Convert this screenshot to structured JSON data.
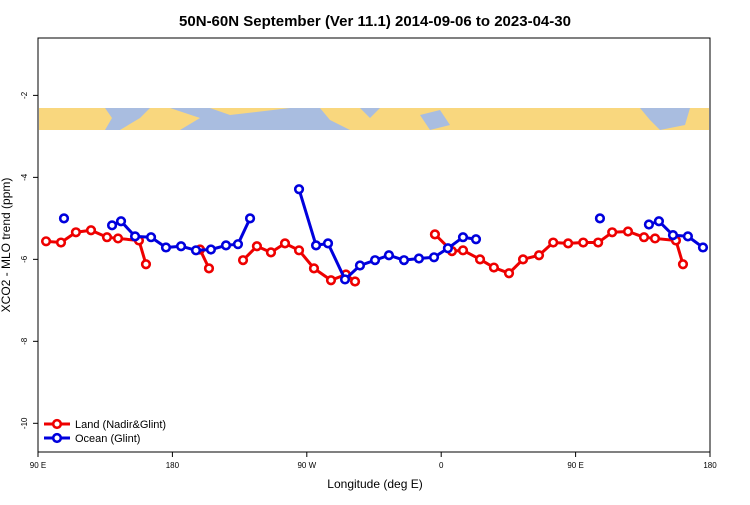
{
  "chart_data": {
    "type": "line",
    "title": "50N-60N September (Ver 11.1)   2014-09-06 to 2023-04-30",
    "x_label": "Longitude (deg E)",
    "y_label": "XCO2 - MLO trend (ppm)",
    "xlim": [
      90,
      540
    ],
    "xticks": [
      {
        "value": 90,
        "label": "90 E"
      },
      180,
      {
        "value": 270,
        "label": "90 W"
      },
      {
        "value": 360,
        "label": "0"
      },
      {
        "value": 450,
        "label": "90 E"
      },
      {
        "value": 540,
        "label": "180"
      }
    ],
    "ylim": [
      -10.7,
      -0.6
    ],
    "yticks": [
      -2,
      -4,
      -6,
      -8,
      -10
    ],
    "legend": "bottom-left",
    "series": [
      {
        "name": "Land (Nadir&Glint)",
        "color": "#ee0000",
        "x": [
          95.4,
          105.4,
          115.4,
          125.5,
          136.2,
          143.6,
          157.6,
          162.3,
          null,
          198.5,
          204.5,
          null,
          227.3,
          236.6,
          246.0,
          255.4,
          264.8,
          274.8,
          286.2,
          296.2,
          302.3,
          null,
          355.8,
          367.2,
          374.6,
          386.0,
          395.3,
          405.4,
          414.8,
          425.5,
          435.0,
          445.0,
          455.1,
          465.1,
          474.5,
          485.1,
          495.8,
          503.2,
          517.2,
          521.9
        ],
        "values": [
          -5.56,
          -5.59,
          -5.34,
          -5.29,
          -5.46,
          -5.49,
          -5.54,
          -6.12,
          null,
          -5.76,
          -6.22,
          null,
          -6.02,
          -5.68,
          -5.83,
          -5.61,
          -5.78,
          -6.22,
          -6.51,
          -6.37,
          -6.54,
          null,
          -5.39,
          -5.8,
          -5.78,
          -6.0,
          -6.2,
          -6.34,
          -6.0,
          -5.9,
          -5.59,
          -5.61,
          -5.59,
          -5.59,
          -5.34,
          -5.32,
          -5.46,
          -5.49,
          -5.54,
          -6.12
        ]
      },
      {
        "name": "Ocean (Glint)",
        "color": "#0000dd",
        "x": [
          107.4,
          null,
          139.6,
          145.6,
          155.0,
          165.7,
          175.7,
          185.8,
          195.8,
          205.8,
          215.9,
          223.9,
          232.0,
          null,
          264.8,
          276.2,
          284.2,
          295.6,
          305.6,
          315.7,
          325.0,
          335.1,
          345.1,
          355.2,
          364.5,
          374.6,
          383.3,
          null,
          466.3,
          null,
          499.1,
          505.8,
          515.2,
          525.2,
          535.3
        ],
        "values": [
          -5.0,
          null,
          -5.17,
          -5.07,
          -5.44,
          -5.46,
          -5.71,
          -5.68,
          -5.78,
          -5.76,
          -5.66,
          -5.63,
          -5.0,
          null,
          -4.29,
          -5.66,
          -5.61,
          -6.49,
          -6.15,
          -6.02,
          -5.9,
          -6.02,
          -5.98,
          -5.95,
          -5.73,
          -5.46,
          -5.51,
          null,
          -5.0,
          null,
          -5.15,
          -5.07,
          -5.41,
          -5.44,
          -5.71
        ]
      }
    ]
  }
}
